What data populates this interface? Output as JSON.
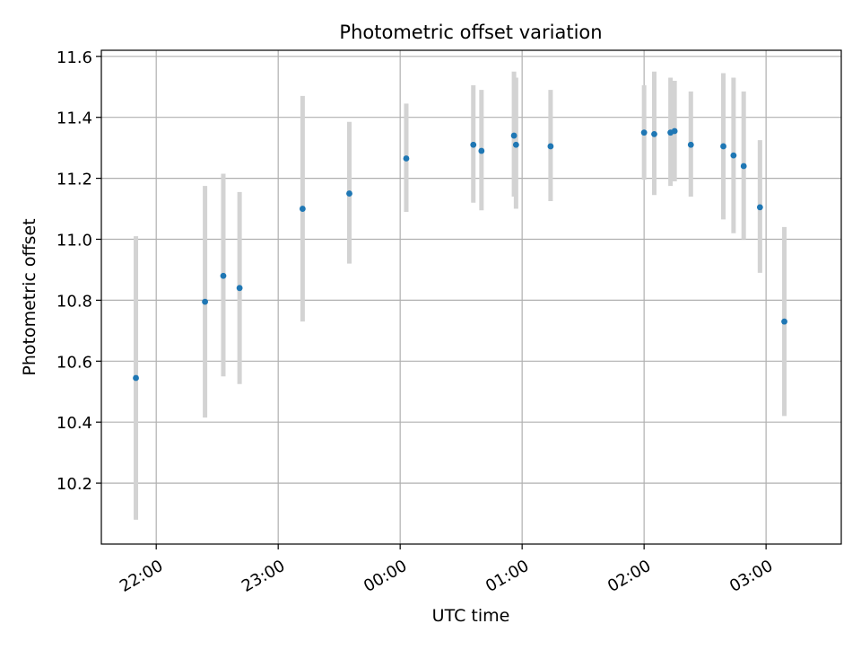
{
  "chart_data": {
    "type": "scatter",
    "title": "Photometric offset variation",
    "xlabel": "UTC time",
    "ylabel": "Photometric offset",
    "x_axis": {
      "kind": "time",
      "ticks": [
        {
          "time": "22:00",
          "label": "22:00"
        },
        {
          "time": "23:00",
          "label": "23:00"
        },
        {
          "time": "24:00",
          "label": "00:00"
        },
        {
          "time": "25:00",
          "label": "01:00"
        },
        {
          "time": "26:00",
          "label": "02:00"
        },
        {
          "time": "27:00",
          "label": "03:00"
        }
      ],
      "range": [
        "21:33",
        "27:37"
      ]
    },
    "y_axis": {
      "range": [
        10.0,
        11.62
      ],
      "ticks": [
        10.2,
        10.4,
        10.6,
        10.8,
        11.0,
        11.2,
        11.4,
        11.6
      ]
    },
    "grid": true,
    "colors": {
      "point": "#1f77b4",
      "errorbar": "#d3d3d3",
      "grid": "#b0b0b0",
      "axis": "#000000"
    },
    "series": [
      {
        "points": [
          {
            "x": "21:50",
            "y": 10.545,
            "low": 10.08,
            "high": 11.01
          },
          {
            "x": "22:24",
            "y": 10.795,
            "low": 10.415,
            "high": 11.175
          },
          {
            "x": "22:33",
            "y": 10.88,
            "low": 10.55,
            "high": 11.215
          },
          {
            "x": "22:41",
            "y": 10.84,
            "low": 10.525,
            "high": 11.155
          },
          {
            "x": "23:12",
            "y": 11.1,
            "low": 10.73,
            "high": 11.47
          },
          {
            "x": "23:35",
            "y": 11.15,
            "low": 10.92,
            "high": 11.385
          },
          {
            "x": "24:03",
            "y": 11.265,
            "low": 11.09,
            "high": 11.445
          },
          {
            "x": "24:36",
            "y": 11.31,
            "low": 11.12,
            "high": 11.505
          },
          {
            "x": "24:40",
            "y": 11.29,
            "low": 11.095,
            "high": 11.49
          },
          {
            "x": "24:56",
            "y": 11.34,
            "low": 11.14,
            "high": 11.55
          },
          {
            "x": "24:57",
            "y": 11.31,
            "low": 11.1,
            "high": 11.53
          },
          {
            "x": "25:14",
            "y": 11.305,
            "low": 11.125,
            "high": 11.49
          },
          {
            "x": "26:00",
            "y": 11.35,
            "low": 11.195,
            "high": 11.505
          },
          {
            "x": "26:05",
            "y": 11.345,
            "low": 11.145,
            "high": 11.55
          },
          {
            "x": "26:13",
            "y": 11.35,
            "low": 11.175,
            "high": 11.53
          },
          {
            "x": "26:15",
            "y": 11.355,
            "low": 11.19,
            "high": 11.52
          },
          {
            "x": "26:23",
            "y": 11.31,
            "low": 11.14,
            "high": 11.485
          },
          {
            "x": "26:39",
            "y": 11.305,
            "low": 11.065,
            "high": 11.545
          },
          {
            "x": "26:44",
            "y": 11.275,
            "low": 11.02,
            "high": 11.53
          },
          {
            "x": "26:49",
            "y": 11.24,
            "low": 11.0,
            "high": 11.485
          },
          {
            "x": "26:57",
            "y": 11.105,
            "low": 10.89,
            "high": 11.325
          },
          {
            "x": "27:09",
            "y": 10.73,
            "low": 10.42,
            "high": 11.04
          }
        ]
      }
    ]
  }
}
